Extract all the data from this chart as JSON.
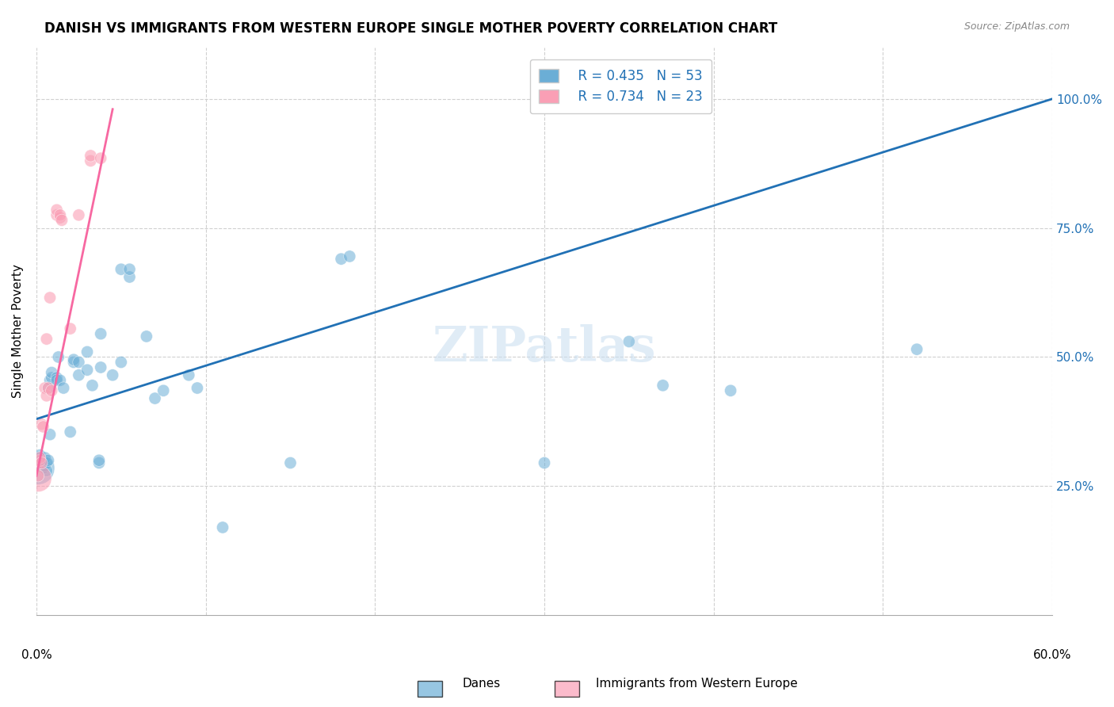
{
  "title": "DANISH VS IMMIGRANTS FROM WESTERN EUROPE SINGLE MOTHER POVERTY CORRELATION CHART",
  "source": "Source: ZipAtlas.com",
  "ylabel": "Single Mother Poverty",
  "legend_blue_r": "R = 0.435",
  "legend_blue_n": "N = 53",
  "legend_pink_r": "R = 0.734",
  "legend_pink_n": "N = 23",
  "legend_label_blue": "Danes",
  "legend_label_pink": "Immigrants from Western Europe",
  "blue_color": "#6baed6",
  "pink_color": "#fa9fb5",
  "blue_line_color": "#2171b5",
  "pink_line_color": "#f768a1",
  "watermark": "ZIPatlas",
  "blue_dots": [
    [
      0.001,
      0.285
    ],
    [
      0.002,
      0.29
    ],
    [
      0.002,
      0.31
    ],
    [
      0.003,
      0.295
    ],
    [
      0.003,
      0.3
    ],
    [
      0.004,
      0.285
    ],
    [
      0.004,
      0.3
    ],
    [
      0.005,
      0.29
    ],
    [
      0.005,
      0.305
    ],
    [
      0.006,
      0.295
    ],
    [
      0.006,
      0.28
    ],
    [
      0.007,
      0.3
    ],
    [
      0.007,
      0.44
    ],
    [
      0.008,
      0.35
    ],
    [
      0.008,
      0.455
    ],
    [
      0.009,
      0.46
    ],
    [
      0.009,
      0.47
    ],
    [
      0.012,
      0.46
    ],
    [
      0.012,
      0.455
    ],
    [
      0.013,
      0.5
    ],
    [
      0.014,
      0.455
    ],
    [
      0.016,
      0.44
    ],
    [
      0.02,
      0.355
    ],
    [
      0.022,
      0.49
    ],
    [
      0.022,
      0.495
    ],
    [
      0.025,
      0.465
    ],
    [
      0.025,
      0.49
    ],
    [
      0.03,
      0.475
    ],
    [
      0.03,
      0.51
    ],
    [
      0.033,
      0.445
    ],
    [
      0.037,
      0.295
    ],
    [
      0.037,
      0.3
    ],
    [
      0.038,
      0.48
    ],
    [
      0.038,
      0.545
    ],
    [
      0.045,
      0.465
    ],
    [
      0.05,
      0.49
    ],
    [
      0.05,
      0.67
    ],
    [
      0.055,
      0.655
    ],
    [
      0.055,
      0.67
    ],
    [
      0.065,
      0.54
    ],
    [
      0.07,
      0.42
    ],
    [
      0.075,
      0.435
    ],
    [
      0.09,
      0.465
    ],
    [
      0.095,
      0.44
    ],
    [
      0.11,
      0.17
    ],
    [
      0.15,
      0.295
    ],
    [
      0.18,
      0.69
    ],
    [
      0.185,
      0.695
    ],
    [
      0.3,
      0.295
    ],
    [
      0.35,
      0.53
    ],
    [
      0.37,
      0.445
    ],
    [
      0.41,
      0.435
    ],
    [
      0.52,
      0.515
    ]
  ],
  "pink_dots": [
    [
      0.001,
      0.265
    ],
    [
      0.001,
      0.27
    ],
    [
      0.002,
      0.3
    ],
    [
      0.002,
      0.305
    ],
    [
      0.003,
      0.295
    ],
    [
      0.003,
      0.37
    ],
    [
      0.004,
      0.365
    ],
    [
      0.005,
      0.44
    ],
    [
      0.006,
      0.425
    ],
    [
      0.006,
      0.535
    ],
    [
      0.007,
      0.44
    ],
    [
      0.008,
      0.615
    ],
    [
      0.009,
      0.435
    ],
    [
      0.012,
      0.775
    ],
    [
      0.012,
      0.785
    ],
    [
      0.014,
      0.77
    ],
    [
      0.014,
      0.775
    ],
    [
      0.015,
      0.765
    ],
    [
      0.02,
      0.555
    ],
    [
      0.025,
      0.775
    ],
    [
      0.032,
      0.88
    ],
    [
      0.032,
      0.89
    ],
    [
      0.038,
      0.885
    ]
  ],
  "blue_line": {
    "x0": 0.0,
    "y0": 0.38,
    "x1": 0.6,
    "y1": 1.0
  },
  "pink_line": {
    "x0": 0.0,
    "y0": 0.27,
    "x1": 0.045,
    "y1": 0.98
  },
  "xlim": [
    0.0,
    0.6
  ],
  "ylim": [
    0.0,
    1.1
  ],
  "figsize": [
    14.06,
    8.92
  ],
  "dpi": 100
}
